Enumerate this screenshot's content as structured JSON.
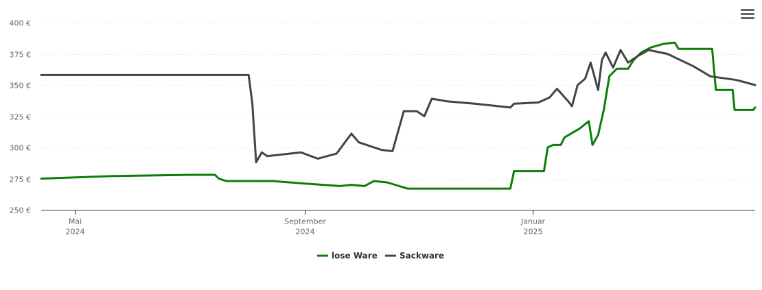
{
  "chart_data": {
    "type": "line",
    "title": "",
    "xlabel": "",
    "ylabel": "",
    "ylim": [
      250,
      400
    ],
    "y_ticks": [
      250,
      275,
      300,
      325,
      350,
      375,
      400
    ],
    "y_tick_labels": [
      "250 €",
      "275 €",
      "300 €",
      "325 €",
      "350 €",
      "375 €",
      "400 €"
    ],
    "x_range": [
      "2024-04-13",
      "2025-04-30"
    ],
    "x_ticks": [
      {
        "date": "2024-05-01",
        "line1": "Mai",
        "line2": "2024"
      },
      {
        "date": "2024-09-01",
        "line1": "September",
        "line2": "2024"
      },
      {
        "date": "2025-01-01",
        "line1": "Januar",
        "line2": "2025"
      }
    ],
    "grid": true,
    "legend_position": "bottom-center",
    "series": [
      {
        "name": "lose Ware",
        "color": "#0a7d0a",
        "points": [
          [
            "2024-04-13",
            275.0
          ],
          [
            "2024-05-20",
            277.0
          ],
          [
            "2024-07-01",
            278.0
          ],
          [
            "2024-07-15",
            278.0
          ],
          [
            "2024-07-17",
            275.0
          ],
          [
            "2024-07-21",
            273.0
          ],
          [
            "2024-08-15",
            273.0
          ],
          [
            "2024-09-01",
            271.0
          ],
          [
            "2024-09-20",
            269.0
          ],
          [
            "2024-09-26",
            270.0
          ],
          [
            "2024-10-03",
            269.0
          ],
          [
            "2024-10-08",
            273.0
          ],
          [
            "2024-10-15",
            272.0
          ],
          [
            "2024-10-26",
            267.0
          ],
          [
            "2024-12-20",
            267.0
          ],
          [
            "2024-12-22",
            281.0
          ],
          [
            "2025-01-07",
            281.0
          ],
          [
            "2025-01-09",
            300.0
          ],
          [
            "2025-01-12",
            302.0
          ],
          [
            "2025-01-16",
            302.0
          ],
          [
            "2025-01-18",
            308.0
          ],
          [
            "2025-01-26",
            315.0
          ],
          [
            "2025-01-31",
            321.0
          ],
          [
            "2025-02-02",
            302.0
          ],
          [
            "2025-02-05",
            310.0
          ],
          [
            "2025-02-08",
            330.0
          ],
          [
            "2025-02-11",
            357.0
          ],
          [
            "2025-02-15",
            363.0
          ],
          [
            "2025-02-21",
            363.0
          ],
          [
            "2025-02-24",
            370.0
          ],
          [
            "2025-02-28",
            376.0
          ],
          [
            "2025-03-05",
            380.0
          ],
          [
            "2025-03-12",
            383.0
          ],
          [
            "2025-03-18",
            384.0
          ],
          [
            "2025-03-20",
            379.0
          ],
          [
            "2025-04-07",
            379.0
          ],
          [
            "2025-04-09",
            346.0
          ],
          [
            "2025-04-18",
            346.0
          ],
          [
            "2025-04-19",
            330.0
          ],
          [
            "2025-04-29",
            330.0
          ],
          [
            "2025-04-30",
            332.0
          ]
        ]
      },
      {
        "name": "Sackware",
        "color": "#434348",
        "points": [
          [
            "2024-04-13",
            358.0
          ],
          [
            "2024-08-02",
            358.0
          ],
          [
            "2024-08-04",
            335.0
          ],
          [
            "2024-08-06",
            288.0
          ],
          [
            "2024-08-09",
            296.0
          ],
          [
            "2024-08-12",
            293.0
          ],
          [
            "2024-08-30",
            296.0
          ],
          [
            "2024-09-08",
            291.0
          ],
          [
            "2024-09-18",
            295.0
          ],
          [
            "2024-09-26",
            311.0
          ],
          [
            "2024-09-30",
            304.0
          ],
          [
            "2024-10-12",
            298.0
          ],
          [
            "2024-10-18",
            297.0
          ],
          [
            "2024-10-24",
            329.0
          ],
          [
            "2024-10-31",
            329.0
          ],
          [
            "2024-11-04",
            325.0
          ],
          [
            "2024-11-08",
            339.0
          ],
          [
            "2024-11-16",
            337.0
          ],
          [
            "2024-12-01",
            335.0
          ],
          [
            "2024-12-20",
            332.0
          ],
          [
            "2024-12-22",
            335.0
          ],
          [
            "2025-01-04",
            336.0
          ],
          [
            "2025-01-10",
            340.0
          ],
          [
            "2025-01-14",
            347.0
          ],
          [
            "2025-01-20",
            337.0
          ],
          [
            "2025-01-22",
            333.0
          ],
          [
            "2025-01-25",
            350.0
          ],
          [
            "2025-01-29",
            355.0
          ],
          [
            "2025-02-01",
            368.0
          ],
          [
            "2025-02-05",
            346.0
          ],
          [
            "2025-02-07",
            370.0
          ],
          [
            "2025-02-09",
            376.0
          ],
          [
            "2025-02-13",
            364.0
          ],
          [
            "2025-02-17",
            378.0
          ],
          [
            "2025-02-21",
            368.0
          ],
          [
            "2025-02-26",
            373.0
          ],
          [
            "2025-03-04",
            378.0
          ],
          [
            "2025-03-14",
            375.0
          ],
          [
            "2025-03-28",
            365.0
          ],
          [
            "2025-04-06",
            357.0
          ],
          [
            "2025-04-20",
            354.0
          ],
          [
            "2025-04-30",
            350.0
          ]
        ]
      }
    ]
  }
}
